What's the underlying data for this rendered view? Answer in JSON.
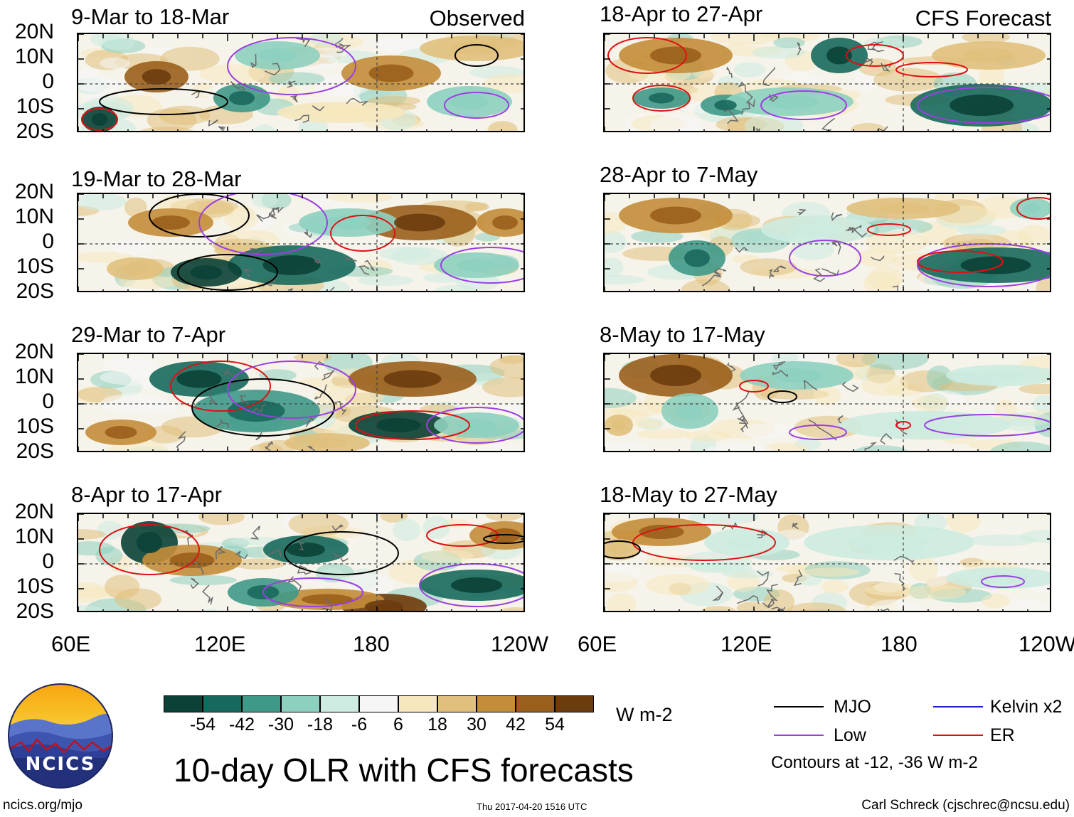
{
  "figure_title": "10-day OLR with CFS forecasts",
  "column_labels": {
    "observed": "Observed",
    "forecast": "CFS Forecast"
  },
  "lat_labels": [
    "20N",
    "10N",
    "0",
    "10S",
    "20S"
  ],
  "lon_labels": [
    "60E",
    "120E",
    "180",
    "120W"
  ],
  "panels": [
    {
      "period": "9-Mar to 18-Mar",
      "type": "Observed"
    },
    {
      "period": "19-Mar to 28-Mar",
      "type": "Observed"
    },
    {
      "period": "29-Mar to 7-Apr",
      "type": "Observed"
    },
    {
      "period": "8-Apr to 17-Apr",
      "type": "Observed"
    },
    {
      "period": "18-Apr to 27-Apr",
      "type": "CFS Forecast"
    },
    {
      "period": "28-Apr to 7-May",
      "type": "CFS Forecast"
    },
    {
      "period": "8-May to 17-May",
      "type": "CFS Forecast"
    },
    {
      "period": "18-May to 27-May",
      "type": "CFS Forecast"
    }
  ],
  "colorbar": {
    "unit": "W m-2",
    "colors": [
      "#0b4136",
      "#18695d",
      "#3f9988",
      "#8ed0c0",
      "#cdebe0",
      "#f6f6f6",
      "#f6e7bd",
      "#e0c07c",
      "#c48d3a",
      "#9a5f1c",
      "#6b3c0e"
    ],
    "labels": [
      "-54",
      "-42",
      "-30",
      "-18",
      "-6",
      "6",
      "18",
      "30",
      "42",
      "54"
    ]
  },
  "legend": {
    "items": [
      {
        "label": "MJO",
        "color": "#000000"
      },
      {
        "label": "Kelvin x2",
        "color": "#1f1fd0"
      },
      {
        "label": "Low",
        "color": "#9a3fe0"
      },
      {
        "label": "ER",
        "color": "#dd1111"
      }
    ],
    "contour_note": "Contours at -12, -36 W m-2"
  },
  "logo": {
    "text": "NCICS"
  },
  "footer": {
    "url": "ncics.org/mjo",
    "timestamp": "Thu 2017-04-20 1516 UTC",
    "credit": "Carl Schreck (cjschrec@ncsu.edu)"
  }
}
